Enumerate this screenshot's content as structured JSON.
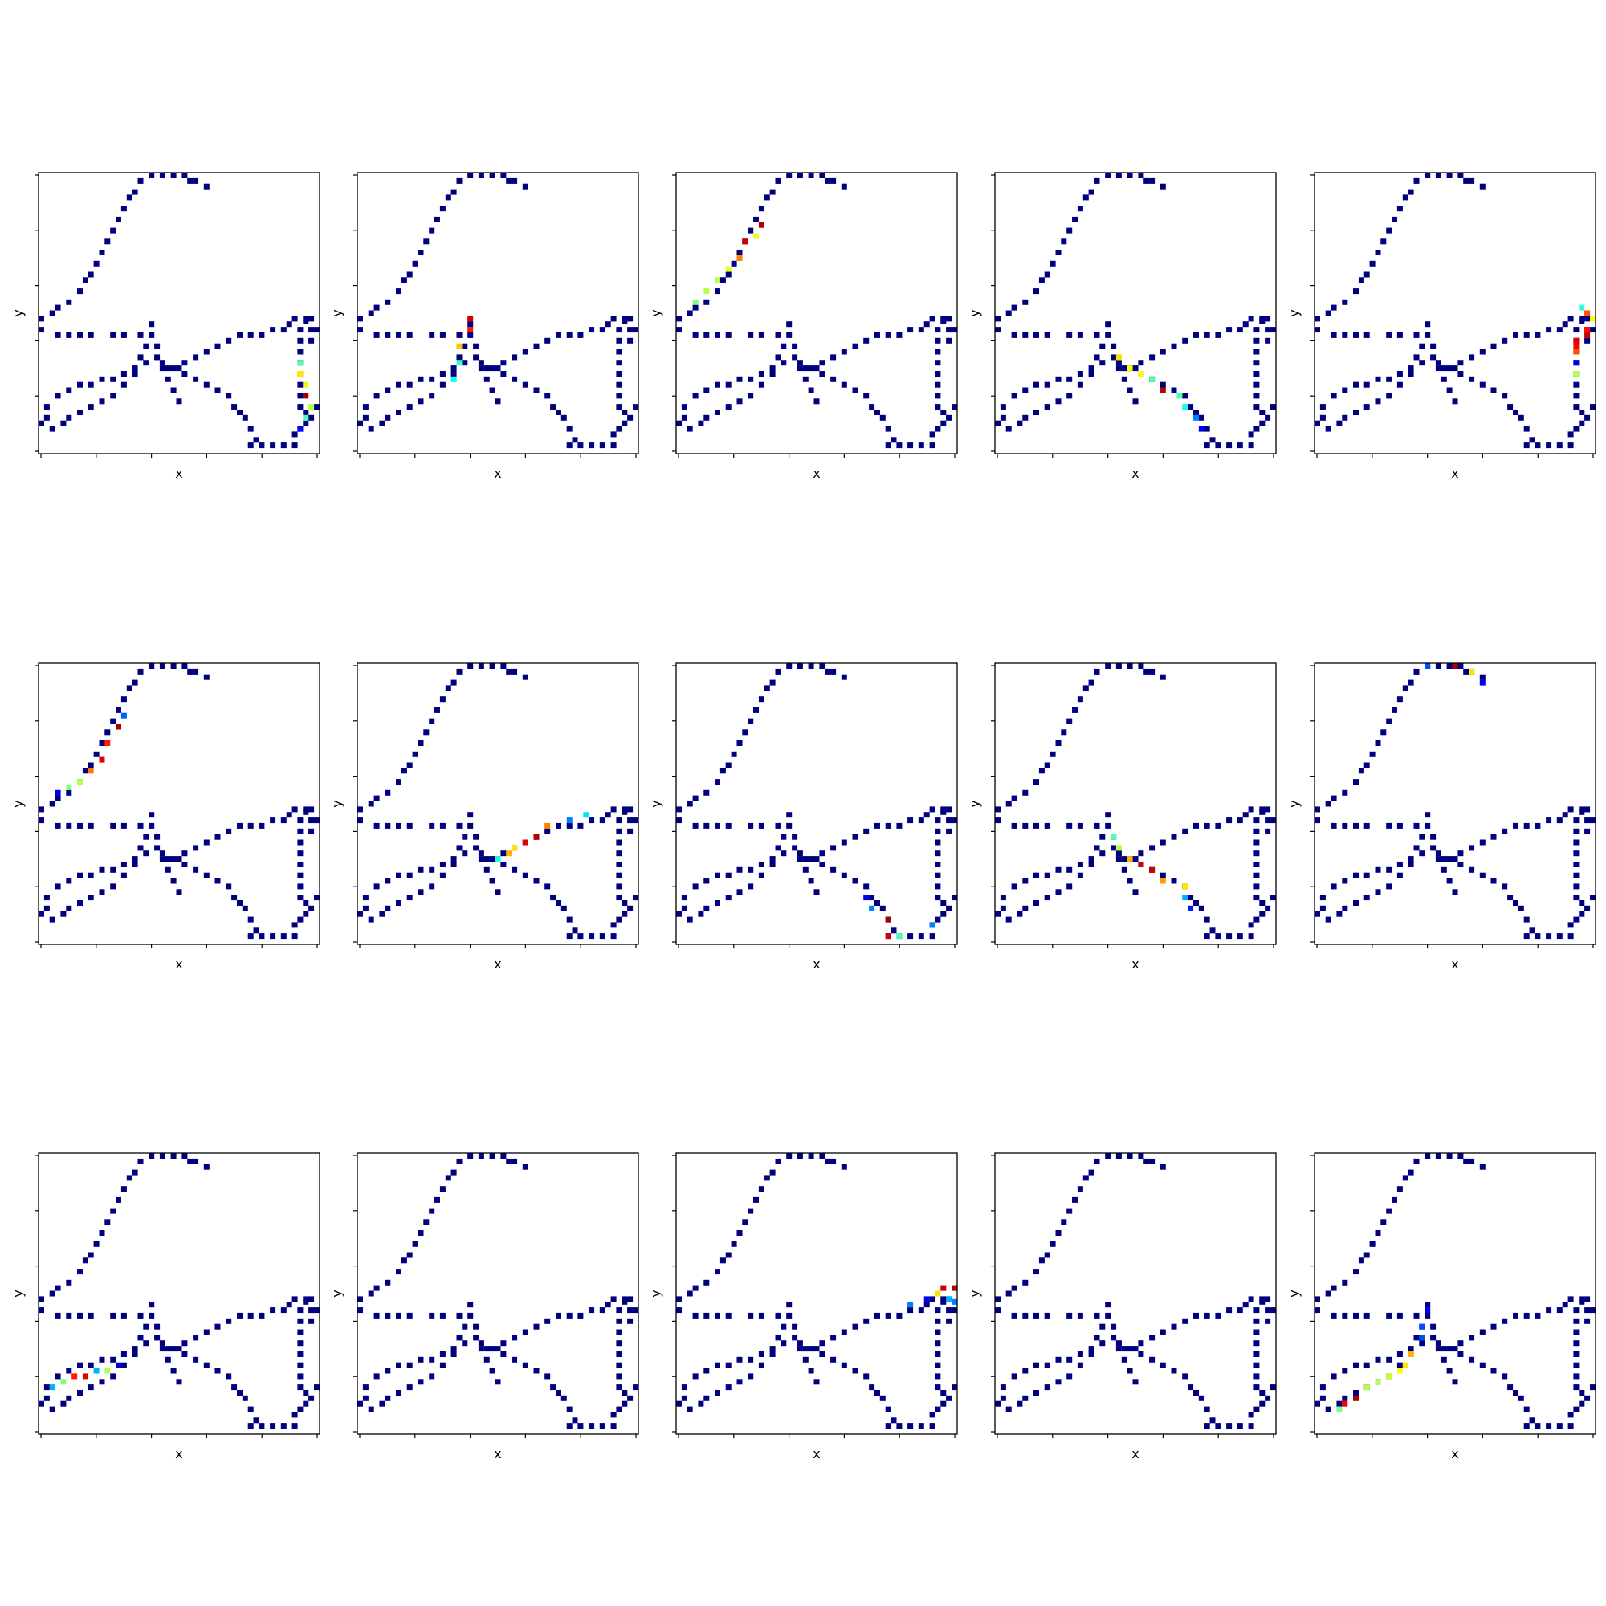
{
  "chart_data": {
    "type": "heatmap",
    "layout": "3x5 small multiples",
    "xlabel": "x",
    "ylabel": "y",
    "xlim": [
      0,
      50
    ],
    "ylim": [
      0,
      50
    ],
    "x_tick_values": [
      0,
      10,
      20,
      30,
      40,
      50
    ],
    "y_tick_values": [
      0,
      10,
      20,
      30,
      40,
      50
    ],
    "tick_labels_shown": false,
    "colormap": "jet",
    "colormap_stops": [
      "#00007f",
      "#0000ff",
      "#007fff",
      "#00ffff",
      "#7fff7f",
      "#ffff00",
      "#ff7f00",
      "#ff0000",
      "#7f0000"
    ],
    "background_color": "#ffffff",
    "base_cell_value": 0,
    "base_cells": [
      [
        20,
        0
      ],
      [
        22,
        0
      ],
      [
        24,
        0
      ],
      [
        26,
        0
      ],
      [
        27,
        1
      ],
      [
        28,
        1
      ],
      [
        30,
        2
      ],
      [
        18,
        1
      ],
      [
        17,
        3
      ],
      [
        16,
        4
      ],
      [
        15,
        6
      ],
      [
        14,
        8
      ],
      [
        13,
        10
      ],
      [
        12,
        12
      ],
      [
        11,
        14
      ],
      [
        10,
        16
      ],
      [
        9,
        18
      ],
      [
        8,
        19
      ],
      [
        7,
        21
      ],
      [
        5,
        23
      ],
      [
        3,
        24
      ],
      [
        2,
        25
      ],
      [
        0,
        26
      ],
      [
        0,
        28
      ],
      [
        3,
        29
      ],
      [
        5,
        29
      ],
      [
        7,
        29
      ],
      [
        9,
        29
      ],
      [
        13,
        29
      ],
      [
        15,
        29
      ],
      [
        18,
        29
      ],
      [
        20,
        29
      ],
      [
        20,
        27
      ],
      [
        21,
        31
      ],
      [
        21,
        33
      ],
      [
        22,
        34
      ],
      [
        23,
        35
      ],
      [
        23,
        37
      ],
      [
        24,
        39
      ],
      [
        25,
        41
      ],
      [
        19,
        31
      ],
      [
        18,
        33
      ],
      [
        17,
        35
      ],
      [
        15,
        36
      ],
      [
        13,
        37
      ],
      [
        11,
        37
      ],
      [
        9,
        38
      ],
      [
        7,
        38
      ],
      [
        5,
        39
      ],
      [
        3,
        40
      ],
      [
        1,
        42
      ],
      [
        1,
        44
      ],
      [
        0,
        45
      ],
      [
        19,
        34
      ],
      [
        17,
        36
      ],
      [
        15,
        38
      ],
      [
        13,
        40
      ],
      [
        11,
        41
      ],
      [
        9,
        42
      ],
      [
        7,
        43
      ],
      [
        5,
        44
      ],
      [
        4,
        45
      ],
      [
        2,
        46
      ],
      [
        22,
        35
      ],
      [
        24,
        35
      ],
      [
        25,
        35
      ],
      [
        26,
        34
      ],
      [
        28,
        33
      ],
      [
        30,
        32
      ],
      [
        32,
        31
      ],
      [
        34,
        30
      ],
      [
        36,
        29
      ],
      [
        38,
        29
      ],
      [
        40,
        29
      ],
      [
        42,
        28
      ],
      [
        44,
        28
      ],
      [
        45,
        27
      ],
      [
        46,
        26
      ],
      [
        48,
        26
      ],
      [
        49,
        26
      ],
      [
        48,
        26.5
      ],
      [
        47,
        28
      ],
      [
        49,
        28
      ],
      [
        50,
        28
      ],
      [
        49,
        30
      ],
      [
        47,
        30
      ],
      [
        47,
        32
      ],
      [
        47,
        34
      ],
      [
        47,
        36
      ],
      [
        47,
        38
      ],
      [
        47,
        40
      ],
      [
        47,
        42
      ],
      [
        48,
        43
      ],
      [
        50,
        42
      ],
      [
        49,
        44
      ],
      [
        48,
        45
      ],
      [
        47,
        46
      ],
      [
        46,
        47
      ],
      [
        26,
        36
      ],
      [
        28,
        37
      ],
      [
        30,
        38
      ],
      [
        32,
        39
      ],
      [
        34,
        40
      ],
      [
        35,
        42
      ],
      [
        36,
        43
      ],
      [
        37,
        44
      ],
      [
        38,
        46
      ],
      [
        39,
        48
      ],
      [
        38,
        49
      ],
      [
        40,
        49
      ],
      [
        42,
        49
      ],
      [
        44,
        49
      ],
      [
        46,
        49
      ]
    ],
    "panels": [
      {
        "panel": 1,
        "highlight_cells": [
          [
            47,
            34,
            0.45
          ],
          [
            47,
            36,
            0.65
          ],
          [
            48,
            38,
            0.6
          ],
          [
            48,
            40,
            0.96
          ],
          [
            49,
            42,
            0.55
          ],
          [
            48,
            44,
            0.45
          ],
          [
            47,
            46,
            0.12
          ]
        ]
      },
      {
        "panel": 2,
        "highlight_cells": [
          [
            20,
            26,
            0.92
          ],
          [
            20,
            28,
            0.85
          ],
          [
            18,
            31,
            0.68
          ],
          [
            18,
            34,
            0.42
          ],
          [
            17,
            37,
            0.38
          ]
        ]
      },
      {
        "panel": 3,
        "highlight_cells": [
          [
            15,
            9,
            0.95
          ],
          [
            14,
            11,
            0.6
          ],
          [
            12,
            12,
            0.93
          ],
          [
            11,
            15,
            0.75
          ],
          [
            9,
            17,
            0.6
          ],
          [
            7,
            19,
            0.55
          ],
          [
            5,
            21,
            0.55
          ],
          [
            3,
            23,
            0.5
          ]
        ]
      },
      {
        "panel": 4,
        "highlight_cells": [
          [
            22,
            33,
            0.66
          ],
          [
            24,
            35,
            0.62
          ],
          [
            26,
            36,
            0.62
          ],
          [
            28,
            37,
            0.45
          ],
          [
            30,
            39,
            0.94
          ],
          [
            33,
            40,
            0.45
          ],
          [
            34,
            42,
            0.4
          ],
          [
            36,
            44,
            0.25
          ],
          [
            37,
            46,
            0.12
          ]
        ]
      },
      {
        "panel": 5,
        "highlight_cells": [
          [
            48,
            24,
            0.42
          ],
          [
            49,
            25,
            0.8
          ],
          [
            50,
            26,
            0.62
          ],
          [
            49,
            28,
            0.86
          ],
          [
            49,
            29,
            0.93
          ],
          [
            47,
            30,
            0.9
          ],
          [
            47,
            31,
            0.88
          ],
          [
            47,
            32,
            0.8
          ],
          [
            47,
            34,
            0.1
          ],
          [
            47,
            36,
            0.55
          ]
        ]
      },
      {
        "panel": 6,
        "highlight_cells": [
          [
            15,
            9,
            0.22
          ],
          [
            14,
            11,
            0.96
          ],
          [
            12,
            14,
            0.85
          ],
          [
            11,
            17,
            0.9
          ],
          [
            9,
            19,
            0.76
          ],
          [
            7,
            21,
            0.55
          ],
          [
            5,
            22,
            0.5
          ],
          [
            3,
            23,
            0.1
          ]
        ]
      },
      {
        "panel": 7,
        "highlight_cells": [
          [
            25,
            35,
            0.4
          ],
          [
            27,
            34,
            0.7
          ],
          [
            28,
            33,
            0.65
          ],
          [
            30,
            32,
            0.9
          ],
          [
            32,
            31,
            0.95
          ],
          [
            34,
            29,
            0.75
          ],
          [
            38,
            28,
            0.25
          ],
          [
            41,
            27,
            0.35
          ]
        ]
      },
      {
        "panel": 8,
        "highlight_cells": [
          [
            34,
            42,
            0.12
          ],
          [
            35,
            44,
            0.25
          ],
          [
            38,
            46,
            0.96
          ],
          [
            38,
            49,
            0.92
          ],
          [
            40,
            49,
            0.45
          ],
          [
            46,
            47,
            0.25
          ]
        ]
      },
      {
        "panel": 9,
        "highlight_cells": [
          [
            21,
            31,
            0.45
          ],
          [
            22,
            33,
            0.55
          ],
          [
            24,
            35,
            0.7
          ],
          [
            26,
            36,
            0.92
          ],
          [
            28,
            37,
            0.93
          ],
          [
            30,
            39,
            0.72
          ],
          [
            34,
            40,
            0.65
          ],
          [
            34,
            42,
            0.3
          ],
          [
            35,
            44,
            0.15
          ]
        ]
      },
      {
        "panel": 10,
        "highlight_cells": [
          [
            20,
            0,
            0.2
          ],
          [
            25,
            0,
            0.95
          ],
          [
            28,
            1,
            0.65
          ],
          [
            30,
            3,
            0.12
          ]
        ]
      },
      {
        "panel": 11,
        "highlight_cells": [
          [
            2,
            42,
            0.3
          ],
          [
            4,
            41,
            0.5
          ],
          [
            6,
            40,
            0.85
          ],
          [
            8,
            40,
            0.9
          ],
          [
            10,
            39,
            0.3
          ],
          [
            12,
            39,
            0.55
          ],
          [
            14,
            38,
            0.1
          ]
        ]
      },
      {
        "panel": 12,
        "highlight_cells": []
      },
      {
        "panel": 13,
        "highlight_cells": [
          [
            42,
            27,
            0.25
          ],
          [
            45,
            26,
            0.12
          ],
          [
            47,
            25,
            0.65
          ],
          [
            48,
            24,
            0.93
          ],
          [
            50,
            24,
            0.95
          ],
          [
            49,
            26,
            0.3
          ],
          [
            50,
            26.5,
            0.25
          ]
        ]
      },
      {
        "panel": 14,
        "highlight_cells": []
      },
      {
        "panel": 15,
        "highlight_cells": [
          [
            20,
            28,
            0.12
          ],
          [
            19,
            31,
            0.2
          ],
          [
            19,
            33,
            0.2
          ],
          [
            17,
            36,
            0.7
          ],
          [
            16,
            38,
            0.65
          ],
          [
            15,
            39,
            0.62
          ],
          [
            13,
            40,
            0.58
          ],
          [
            11,
            41,
            0.55
          ],
          [
            9,
            42,
            0.55
          ],
          [
            7,
            44,
            0.95
          ],
          [
            5,
            45,
            0.88
          ],
          [
            4,
            46,
            0.5
          ]
        ]
      }
    ]
  }
}
